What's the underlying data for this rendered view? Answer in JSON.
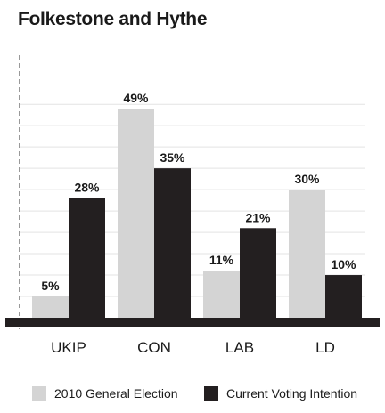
{
  "chart_data": {
    "type": "bar",
    "title": "Folkestone and Hythe",
    "categories": [
      "UKIP",
      "CON",
      "LAB",
      "LD"
    ],
    "series": [
      {
        "name": "2010 General Election",
        "values": [
          5,
          49,
          11,
          30
        ],
        "labels": [
          "5%",
          "49%",
          "11%",
          "30%"
        ],
        "color": "#d4d4d4"
      },
      {
        "name": "Current Voting Intention",
        "values": [
          28,
          35,
          21,
          10
        ],
        "labels": [
          "28%",
          "35%",
          "21%",
          "10%"
        ],
        "color": "#231f20"
      }
    ],
    "ylim": [
      0,
      50
    ],
    "grid": true,
    "legend_position": "bottom"
  }
}
